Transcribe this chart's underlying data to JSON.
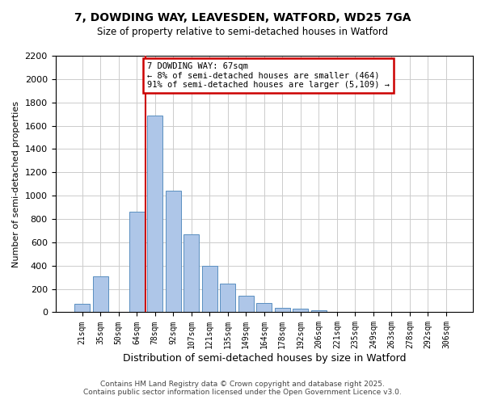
{
  "title": "7, DOWDING WAY, LEAVESDEN, WATFORD, WD25 7GA",
  "subtitle": "Size of property relative to semi-detached houses in Watford",
  "xlabel": "Distribution of semi-detached houses by size in Watford",
  "ylabel": "Number of semi-detached properties",
  "bin_labels": [
    "21sqm",
    "35sqm",
    "50sqm",
    "64sqm",
    "78sqm",
    "92sqm",
    "107sqm",
    "121sqm",
    "135sqm",
    "149sqm",
    "164sqm",
    "178sqm",
    "192sqm",
    "206sqm",
    "221sqm",
    "235sqm",
    "249sqm",
    "263sqm",
    "278sqm",
    "292sqm",
    "306sqm"
  ],
  "bar_heights": [
    75,
    305,
    0,
    860,
    1690,
    1040,
    670,
    395,
    245,
    145,
    80,
    40,
    30,
    20,
    0,
    5,
    0,
    0,
    0,
    0,
    5
  ],
  "bar_color": "#aec6e8",
  "bar_edge_color": "#5a8fc0",
  "vline_x": 3.5,
  "vline_color": "#cc0000",
  "annotation_title": "7 DOWDING WAY: 67sqm",
  "annotation_line1": "← 8% of semi-detached houses are smaller (464)",
  "annotation_line2": "91% of semi-detached houses are larger (5,109) →",
  "annotation_box_color": "#cc0000",
  "ylim": [
    0,
    2200
  ],
  "yticks": [
    0,
    200,
    400,
    600,
    800,
    1000,
    1200,
    1400,
    1600,
    1800,
    2000,
    2200
  ],
  "footer_line1": "Contains HM Land Registry data © Crown copyright and database right 2025.",
  "footer_line2": "Contains public sector information licensed under the Open Government Licence v3.0.",
  "background_color": "#ffffff",
  "grid_color": "#cccccc"
}
